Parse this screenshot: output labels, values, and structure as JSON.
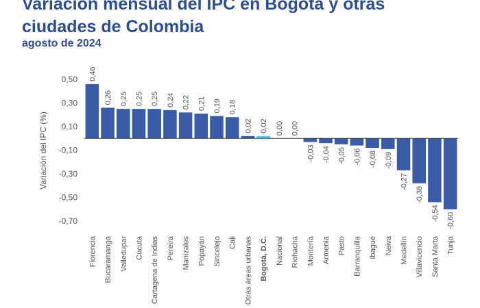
{
  "title": "Variación mensual del IPC en Bogotá y otras ciudades de Colombia",
  "subtitle": "agosto de 2024",
  "chart_data": {
    "type": "bar",
    "title": "Variación mensual del IPC en Bogotá y otras ciudades de Colombia",
    "subtitle": "agosto de 2024",
    "xlabel": "",
    "ylabel": "Variación del IPC (%)",
    "ylim": [
      -0.7,
      0.5
    ],
    "yticks": [
      0.5,
      0.3,
      0.1,
      -0.1,
      -0.3,
      -0.5,
      -0.7
    ],
    "ytick_labels": [
      "0,50",
      "0,30",
      "0,10",
      "-0,10",
      "-0,30",
      "-0,50",
      "-0,70"
    ],
    "grid": false,
    "categories": [
      "Florencia",
      "Bucaramanga",
      "Valledupar",
      "Cúcuta",
      "Cartagena de Indias",
      "Pereira",
      "Manizales",
      "Popayán",
      "Sincelejo",
      "Cali",
      "Otras áreas urbanas",
      "Bogotá, D.C.",
      "Nacional",
      "Riohacha",
      "Montería",
      "Armenia",
      "Pasto",
      "Barranquilla",
      "Ibagué",
      "Neiva",
      "Medellín",
      "Villavicencio",
      "Santa Marta",
      "Tunja"
    ],
    "values": [
      0.46,
      0.26,
      0.25,
      0.25,
      0.25,
      0.24,
      0.22,
      0.21,
      0.19,
      0.18,
      0.02,
      0.02,
      0.0,
      0.0,
      -0.03,
      -0.04,
      -0.05,
      -0.06,
      -0.08,
      -0.09,
      -0.27,
      -0.38,
      -0.54,
      -0.6
    ],
    "value_labels": [
      "0,46",
      "0,26",
      "0,25",
      "0,25",
      "0,25",
      "0,24",
      "0,22",
      "0,21",
      "0,19",
      "0,18",
      "0,02",
      "0,02",
      "0,00",
      "0,00",
      "-0,03",
      "-0,04",
      "-0,05",
      "-0,06",
      "-0,08",
      "-0,09",
      "-0,27",
      "-0,38",
      "-0,54",
      "-0,60"
    ],
    "highlight": [
      "Bogotá, D.C.",
      "Nacional"
    ],
    "colors": {
      "bar": "#3a5ba6",
      "highlight_bar": "#52c6ea",
      "highlight_text": "#38b7e3",
      "axis": "#333333",
      "text": "#555555",
      "title": "#2d4e8f"
    }
  }
}
